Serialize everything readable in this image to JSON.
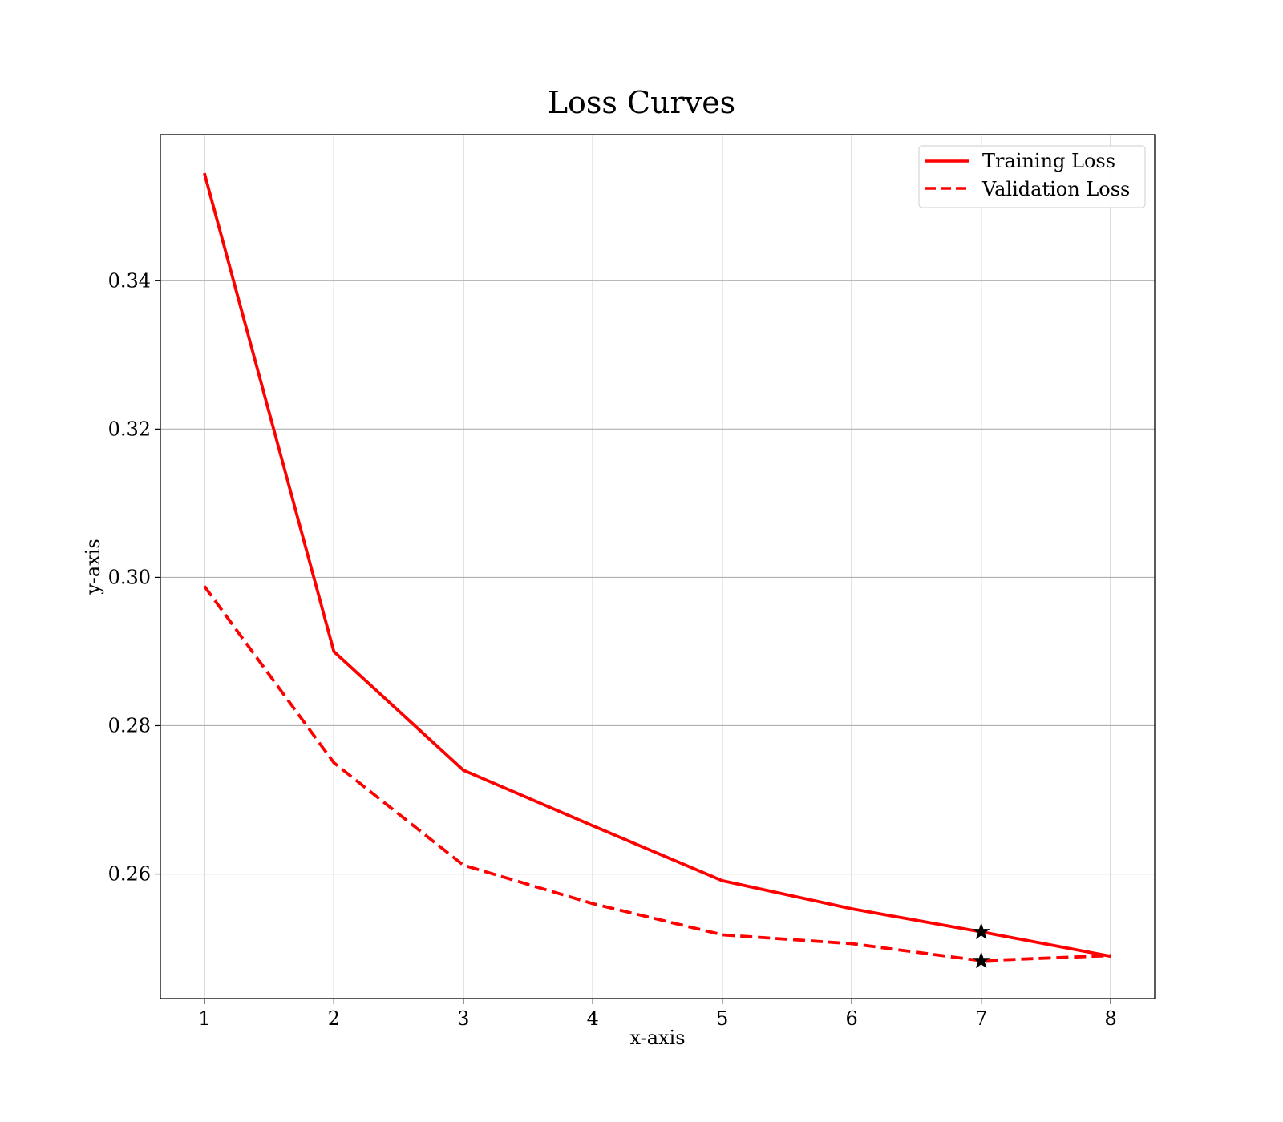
{
  "chart_data": {
    "type": "line",
    "title": "Loss Curves",
    "xlabel": "x-axis",
    "ylabel": "y-axis",
    "x": [
      1,
      2,
      3,
      4,
      5,
      6,
      7,
      8
    ],
    "xlim": [
      0.66,
      8.34
    ],
    "ylim": [
      0.2432,
      0.3597
    ],
    "xticks": [
      1,
      2,
      3,
      4,
      5,
      6,
      7,
      8
    ],
    "yticks": [
      0.26,
      0.28,
      0.3,
      0.32,
      0.34
    ],
    "ytick_labels": [
      "0.26",
      "0.28",
      "0.30",
      "0.32",
      "0.34"
    ],
    "grid": true,
    "legend_position": "top-right",
    "series": [
      {
        "name": "Training Loss",
        "values": [
          0.3545,
          0.29,
          0.274,
          0.2665,
          0.2591,
          0.2553,
          0.2522,
          0.2489
        ],
        "color": "#ff0000",
        "style": "solid"
      },
      {
        "name": "Validation Loss",
        "values": [
          0.2988,
          0.275,
          0.2612,
          0.256,
          0.2518,
          0.2506,
          0.2483,
          0.249
        ],
        "color": "#ff0000",
        "style": "dashed"
      }
    ],
    "markers": [
      {
        "series": "Training Loss",
        "x": 7,
        "y": 0.2522,
        "symbol": "star"
      },
      {
        "series": "Validation Loss",
        "x": 7,
        "y": 0.2483,
        "symbol": "star"
      }
    ]
  }
}
